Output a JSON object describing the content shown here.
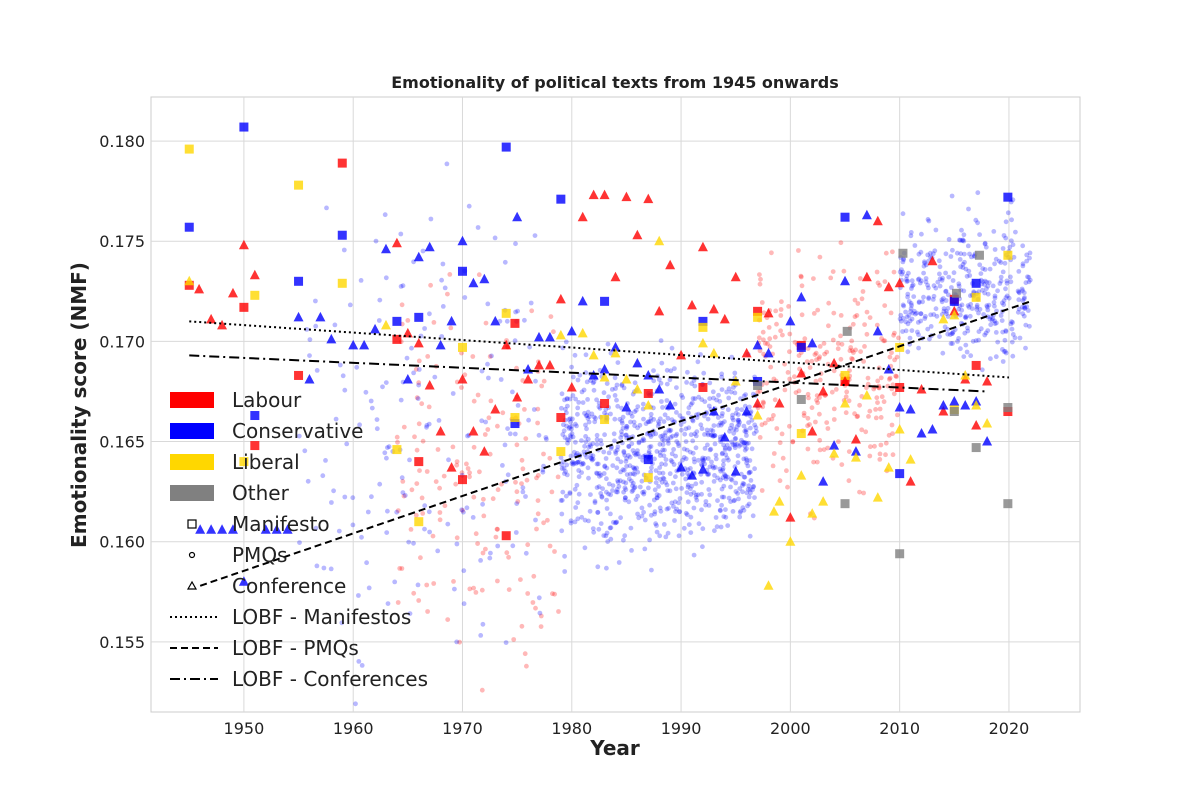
{
  "chart_data": {
    "type": "scatter",
    "title": "Emotionality of political texts from 1945 onwards",
    "xlabel": "Year",
    "ylabel": "Emotionality score (NMF)",
    "xlim": [
      1941.5,
      2026.5
    ],
    "ylim": [
      0.1515,
      0.1822
    ],
    "x_ticks": [
      1950,
      1960,
      1970,
      1980,
      1990,
      2000,
      2010,
      2020
    ],
    "y_ticks": [
      0.155,
      0.16,
      0.165,
      0.17,
      0.175,
      0.18
    ],
    "y_tick_labels": [
      "0.155",
      "0.160",
      "0.165",
      "0.170",
      "0.175",
      "0.180"
    ],
    "grid": true,
    "legend_placement": "center-left",
    "colors": {
      "Labour": "#ff0000",
      "Conservative": "#0000ff",
      "Liberal": "#ffd700",
      "Other": "#808080"
    },
    "legend": {
      "parties": [
        "Labour",
        "Conservative",
        "Liberal",
        "Other"
      ],
      "markers": [
        {
          "label": "Manifesto",
          "shape": "square"
        },
        {
          "label": "PMQs",
          "shape": "circle"
        },
        {
          "label": "Conference",
          "shape": "triangle"
        }
      ],
      "lines": [
        {
          "label": "LOBF - Manifestos",
          "style": "dotted"
        },
        {
          "label": "LOBF - PMQs",
          "style": "dashed"
        },
        {
          "label": "LOBF - Conferences",
          "style": "dashdot"
        }
      ]
    },
    "trend_lines": [
      {
        "name": "LOBF - Manifestos",
        "style": "dotted",
        "x": [
          1945,
          2020
        ],
        "y": [
          0.171,
          0.1682
        ]
      },
      {
        "name": "LOBF - PMQs",
        "style": "dashed",
        "x": [
          1946,
          2022
        ],
        "y": [
          0.1578,
          0.172
        ]
      },
      {
        "name": "LOBF - Conferences",
        "style": "dashdot",
        "x": [
          1945,
          2018
        ],
        "y": [
          0.1693,
          0.1675
        ]
      }
    ],
    "manifestos": [
      {
        "party": "Labour",
        "points": [
          [
            1945,
            0.1728
          ],
          [
            1950,
            0.1717
          ],
          [
            1951,
            0.1648
          ],
          [
            1955,
            0.1683
          ],
          [
            1959,
            0.1789
          ],
          [
            1964,
            0.1701
          ],
          [
            1966,
            0.164
          ],
          [
            1970,
            0.1631
          ],
          [
            1974,
            0.1603
          ],
          [
            1974.8,
            0.1709
          ],
          [
            1979,
            0.1662
          ],
          [
            1983,
            0.1669
          ],
          [
            1987,
            0.1674
          ],
          [
            1992,
            0.1677
          ],
          [
            1997,
            0.1715
          ],
          [
            2001,
            0.1698
          ],
          [
            2005,
            0.168
          ],
          [
            2010,
            0.1677
          ],
          [
            2015,
            0.1721
          ],
          [
            2017,
            0.1688
          ],
          [
            2019.9,
            0.1665
          ]
        ]
      },
      {
        "party": "Conservative",
        "points": [
          [
            1945,
            0.1757
          ],
          [
            1950,
            0.1807
          ],
          [
            1951,
            0.1663
          ],
          [
            1955,
            0.173
          ],
          [
            1959,
            0.1753
          ],
          [
            1964,
            0.171
          ],
          [
            1966,
            0.1712
          ],
          [
            1970,
            0.1735
          ],
          [
            1974,
            0.1797
          ],
          [
            1974.8,
            0.1659
          ],
          [
            1979,
            0.1771
          ],
          [
            1983,
            0.172
          ],
          [
            1987,
            0.1641
          ],
          [
            1992,
            0.171
          ],
          [
            1997,
            0.168
          ],
          [
            2001,
            0.1697
          ],
          [
            2005,
            0.1762
          ],
          [
            2010,
            0.1634
          ],
          [
            2015,
            0.172
          ],
          [
            2017,
            0.1729
          ],
          [
            2019.9,
            0.1772
          ]
        ]
      },
      {
        "party": "Liberal",
        "points": [
          [
            1945,
            0.1796
          ],
          [
            1950,
            0.164
          ],
          [
            1951,
            0.1723
          ],
          [
            1955,
            0.1778
          ],
          [
            1959,
            0.1729
          ],
          [
            1964,
            0.1646
          ],
          [
            1966,
            0.161
          ],
          [
            1970,
            0.1697
          ],
          [
            1974,
            0.1714
          ],
          [
            1974.8,
            0.1662
          ],
          [
            1979,
            0.1645
          ],
          [
            1983,
            0.1661
          ],
          [
            1987,
            0.1632
          ],
          [
            1992,
            0.1707
          ],
          [
            1997,
            0.1712
          ],
          [
            2001,
            0.1654
          ],
          [
            2005,
            0.1683
          ],
          [
            2010,
            0.1697
          ],
          [
            2015,
            0.1666
          ],
          [
            2017,
            0.1722
          ],
          [
            2019.9,
            0.1743
          ]
        ]
      },
      {
        "party": "Other",
        "points": [
          [
            1997,
            0.1678
          ],
          [
            2001,
            0.1671
          ],
          [
            2005,
            0.1619
          ],
          [
            2005.2,
            0.1705
          ],
          [
            2010,
            0.1594
          ],
          [
            2010.3,
            0.1744
          ],
          [
            2015,
            0.1665
          ],
          [
            2015.2,
            0.1724
          ],
          [
            2017,
            0.1647
          ],
          [
            2017.3,
            0.1743
          ],
          [
            2019.9,
            0.1619
          ],
          [
            2019.9,
            0.1667
          ]
        ]
      }
    ],
    "conferences": [
      {
        "party": "Labour",
        "points": [
          [
            1945.9,
            0.1726
          ],
          [
            1947,
            0.1711
          ],
          [
            1948,
            0.1708
          ],
          [
            1949,
            0.1724
          ],
          [
            1950,
            0.1748
          ],
          [
            1951,
            0.1733
          ],
          [
            1964,
            0.1749
          ],
          [
            1965,
            0.1704
          ],
          [
            1966,
            0.1699
          ],
          [
            1967,
            0.1678
          ],
          [
            1968,
            0.1655
          ],
          [
            1969,
            0.1637
          ],
          [
            1970,
            0.1681
          ],
          [
            1971,
            0.1655
          ],
          [
            1972,
            0.1645
          ],
          [
            1973,
            0.1666
          ],
          [
            1974,
            0.1698
          ],
          [
            1975,
            0.1672
          ],
          [
            1976,
            0.1681
          ],
          [
            1977,
            0.1688
          ],
          [
            1978,
            0.1688
          ],
          [
            1979,
            0.1721
          ],
          [
            1980,
            0.1677
          ],
          [
            1981,
            0.1762
          ],
          [
            1982,
            0.1773
          ],
          [
            1983,
            0.1773
          ],
          [
            1984,
            0.1732
          ],
          [
            1985,
            0.1772
          ],
          [
            1986,
            0.1753
          ],
          [
            1987,
            0.1771
          ],
          [
            1988,
            0.1715
          ],
          [
            1989,
            0.1738
          ],
          [
            1990,
            0.1693
          ],
          [
            1991,
            0.1718
          ],
          [
            1992,
            0.1747
          ],
          [
            1993,
            0.1716
          ],
          [
            1994,
            0.1711
          ],
          [
            1995,
            0.1732
          ],
          [
            1996,
            0.1694
          ],
          [
            1997,
            0.1669
          ],
          [
            1998,
            0.1714
          ],
          [
            1999,
            0.1669
          ],
          [
            2000,
            0.1612
          ],
          [
            2001,
            0.1684
          ],
          [
            2002,
            0.1655
          ],
          [
            2003,
            0.1675
          ],
          [
            2004,
            0.1689
          ],
          [
            2005,
            0.168
          ],
          [
            2006,
            0.1651
          ],
          [
            2007,
            0.1732
          ],
          [
            2008,
            0.176
          ],
          [
            2009,
            0.1727
          ],
          [
            2010,
            0.1729
          ],
          [
            2011,
            0.163
          ],
          [
            2012,
            0.1676
          ],
          [
            2013,
            0.174
          ],
          [
            2014,
            0.1665
          ],
          [
            2015,
            0.1715
          ],
          [
            2016,
            0.1681
          ],
          [
            2017,
            0.1658
          ],
          [
            2018,
            0.168
          ]
        ]
      },
      {
        "party": "Conservative",
        "points": [
          [
            1946,
            0.1606
          ],
          [
            1947,
            0.1606
          ],
          [
            1948,
            0.1606
          ],
          [
            1949,
            0.1606
          ],
          [
            1950,
            0.158
          ],
          [
            1952,
            0.1606
          ],
          [
            1953,
            0.1606
          ],
          [
            1954,
            0.1606
          ],
          [
            1955,
            0.1712
          ],
          [
            1956,
            0.1681
          ],
          [
            1957,
            0.1712
          ],
          [
            1958,
            0.1701
          ],
          [
            1960,
            0.1698
          ],
          [
            1961,
            0.1698
          ],
          [
            1962,
            0.1706
          ],
          [
            1963,
            0.1746
          ],
          [
            1965,
            0.1681
          ],
          [
            1966,
            0.1742
          ],
          [
            1967,
            0.1747
          ],
          [
            1968,
            0.1698
          ],
          [
            1969,
            0.171
          ],
          [
            1970,
            0.175
          ],
          [
            1971,
            0.1729
          ],
          [
            1972,
            0.1731
          ],
          [
            1973,
            0.171
          ],
          [
            1975,
            0.1762
          ],
          [
            1976,
            0.1686
          ],
          [
            1977,
            0.1702
          ],
          [
            1978,
            0.1702
          ],
          [
            1980,
            0.1705
          ],
          [
            1981,
            0.172
          ],
          [
            1982,
            0.1683
          ],
          [
            1983,
            0.1686
          ],
          [
            1984,
            0.1697
          ],
          [
            1985,
            0.1667
          ],
          [
            1986,
            0.1689
          ],
          [
            1987,
            0.1683
          ],
          [
            1988,
            0.1676
          ],
          [
            1989,
            0.1668
          ],
          [
            1990,
            0.1637
          ],
          [
            1991,
            0.1633
          ],
          [
            1992,
            0.1636
          ],
          [
            1993,
            0.1665
          ],
          [
            1994,
            0.1652
          ],
          [
            1995,
            0.1635
          ],
          [
            1996,
            0.1665
          ],
          [
            1997,
            0.1698
          ],
          [
            1998,
            0.1694
          ],
          [
            2000,
            0.171
          ],
          [
            2001,
            0.1722
          ],
          [
            2002,
            0.1699
          ],
          [
            2003,
            0.163
          ],
          [
            2004,
            0.1648
          ],
          [
            2005,
            0.173
          ],
          [
            2006,
            0.1645
          ],
          [
            2007,
            0.1763
          ],
          [
            2008,
            0.1705
          ],
          [
            2009,
            0.1686
          ],
          [
            2010,
            0.1667
          ],
          [
            2011,
            0.1666
          ],
          [
            2012,
            0.1654
          ],
          [
            2013,
            0.1656
          ],
          [
            2014,
            0.1668
          ],
          [
            2015,
            0.167
          ],
          [
            2016,
            0.1668
          ],
          [
            2017,
            0.167
          ],
          [
            2018,
            0.165
          ]
        ]
      },
      {
        "party": "Liberal",
        "points": [
          [
            1945,
            0.173
          ],
          [
            1963,
            0.1708
          ],
          [
            1979,
            0.1703
          ],
          [
            1981,
            0.1704
          ],
          [
            1982,
            0.1693
          ],
          [
            1983,
            0.1682
          ],
          [
            1984,
            0.1694
          ],
          [
            1985,
            0.1681
          ],
          [
            1986,
            0.1676
          ],
          [
            1987,
            0.1668
          ],
          [
            1988,
            0.175
          ],
          [
            1992,
            0.1699
          ],
          [
            1993,
            0.1694
          ],
          [
            1995,
            0.168
          ],
          [
            1997,
            0.1663
          ],
          [
            1998,
            0.1578
          ],
          [
            1998.5,
            0.1615
          ],
          [
            1999,
            0.162
          ],
          [
            2000,
            0.16
          ],
          [
            2001,
            0.1633
          ],
          [
            2002,
            0.1614
          ],
          [
            2003,
            0.162
          ],
          [
            2004,
            0.1644
          ],
          [
            2005,
            0.1669
          ],
          [
            2006,
            0.1642
          ],
          [
            2007,
            0.1673
          ],
          [
            2008,
            0.1622
          ],
          [
            2009,
            0.1637
          ],
          [
            2010,
            0.1656
          ],
          [
            2011,
            0.1641
          ],
          [
            2014,
            0.1711
          ],
          [
            2015,
            0.1713
          ],
          [
            2016,
            0.1683
          ],
          [
            2017,
            0.1668
          ],
          [
            2018,
            0.1659
          ]
        ]
      }
    ],
    "pmqs": [
      {
        "party": "Labour",
        "count": 430,
        "x_range": [
          1964,
          2016
        ],
        "note": "translucent circles"
      },
      {
        "party": "Conservative",
        "count": 1450,
        "x_range": [
          1955,
          2022
        ],
        "note": "translucent circles"
      }
    ]
  }
}
